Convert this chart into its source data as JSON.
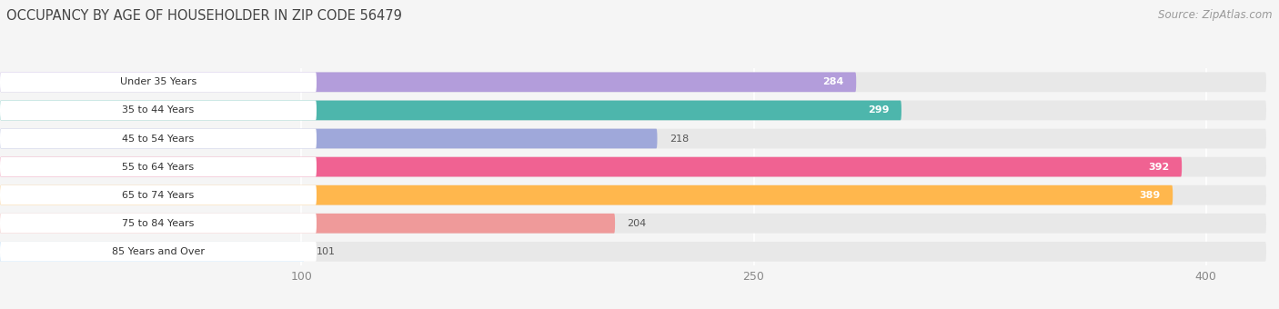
{
  "title": "OCCUPANCY BY AGE OF HOUSEHOLDER IN ZIP CODE 56479",
  "source": "Source: ZipAtlas.com",
  "categories": [
    "Under 35 Years",
    "35 to 44 Years",
    "45 to 54 Years",
    "55 to 64 Years",
    "65 to 74 Years",
    "75 to 84 Years",
    "85 Years and Over"
  ],
  "values": [
    284,
    299,
    218,
    392,
    389,
    204,
    101
  ],
  "bar_colors": [
    "#b39ddb",
    "#4db6ac",
    "#9fa8da",
    "#f06292",
    "#ffb74d",
    "#ef9a9a",
    "#90caf9"
  ],
  "label_colors": [
    "white",
    "white",
    "black",
    "white",
    "white",
    "black",
    "black"
  ],
  "xlim": [
    0,
    420
  ],
  "xticks": [
    100,
    250,
    400
  ],
  "background_color": "#f5f5f5",
  "bar_background_color": "#e8e8e8",
  "title_fontsize": 10.5,
  "source_fontsize": 8.5,
  "tick_fontsize": 9,
  "label_fontsize": 8,
  "value_fontsize": 8
}
